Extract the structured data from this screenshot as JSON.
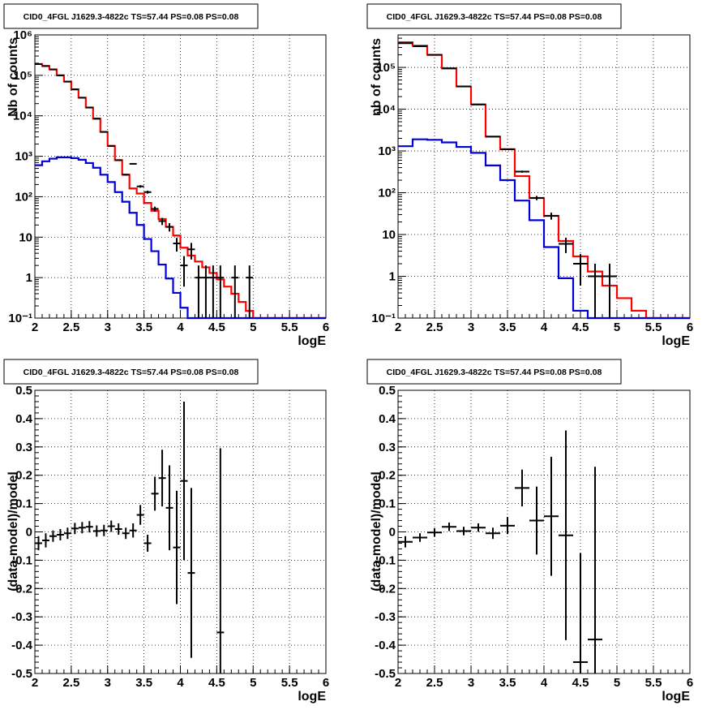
{
  "colors": {
    "data": "#000000",
    "model_total": "#ff0000",
    "model_source": "#0000d6"
  },
  "chart_data": [
    {
      "id": "p1",
      "type": "line",
      "title": "CID0_4FGL J1629.3-4822c TS=57.44 PS=0.08 PS=0.08",
      "xlabel": "logE",
      "ylabel": "Nb of counts",
      "xlim": [
        2,
        6
      ],
      "ylim": [
        0.1,
        1000000
      ],
      "yscale": "log",
      "xticks": [
        "2",
        "2.5",
        "3",
        "3.5",
        "4",
        "4.5",
        "5",
        "5.5",
        "6"
      ],
      "yticks": [
        "10⁻¹",
        "1",
        "10",
        "10²",
        "10³",
        "10⁴",
        "10⁵",
        "10⁶"
      ],
      "grid": true,
      "series": [
        {
          "role": "model_total",
          "style": "step",
          "bin_width": 0.1,
          "x": [
            2.0,
            2.1,
            2.2,
            2.3,
            2.4,
            2.5,
            2.6,
            2.7,
            2.8,
            2.9,
            3.0,
            3.1,
            3.2,
            3.3,
            3.4,
            3.5,
            3.6,
            3.7,
            3.8,
            3.9,
            4.0,
            4.1,
            4.2,
            4.3,
            4.4,
            4.5,
            4.6,
            4.7,
            4.8,
            4.9,
            5.0,
            5.1,
            5.2,
            5.3,
            5.4,
            5.5,
            5.6,
            5.7,
            5.8,
            5.9
          ],
          "y": [
            190000,
            170000,
            140000,
            100000,
            70000,
            45000,
            28000,
            16000,
            8500,
            4000,
            1800,
            800,
            350,
            160,
            120,
            70,
            45,
            28,
            18,
            11,
            5.5,
            3.5,
            2.5,
            1.8,
            1.3,
            0.9,
            0.6,
            0.4,
            0.25,
            0.15,
            0.1,
            0.1,
            0.1,
            0.1,
            0.1,
            0.1,
            0.1,
            0.1,
            0.1,
            0.1
          ]
        },
        {
          "role": "model_source",
          "style": "step",
          "bin_width": 0.1,
          "x": [
            2.0,
            2.1,
            2.2,
            2.3,
            2.4,
            2.5,
            2.6,
            2.7,
            2.8,
            2.9,
            3.0,
            3.1,
            3.2,
            3.3,
            3.4,
            3.5,
            3.6,
            3.7,
            3.8,
            3.9,
            4.0,
            4.1,
            4.2,
            4.3,
            4.4,
            4.5,
            4.6,
            4.7,
            4.8,
            4.9,
            5.0,
            5.1,
            5.2,
            5.3,
            5.4,
            5.5,
            5.6,
            5.7,
            5.8,
            5.9
          ],
          "y": [
            600,
            750,
            870,
            940,
            940,
            900,
            820,
            680,
            520,
            350,
            230,
            130,
            75,
            40,
            20,
            9,
            4.5,
            2.1,
            0.95,
            0.42,
            0.18,
            0.1,
            0.1,
            0.1,
            0.1,
            0.1,
            0.1,
            0.1,
            0.1,
            0.1,
            0.1,
            0.1,
            0.1,
            0.1,
            0.1,
            0.1,
            0.1,
            0.1,
            0.1,
            0.1
          ]
        },
        {
          "role": "data",
          "style": "errorbar",
          "bin_width": 0.1,
          "x": [
            2.05,
            2.15,
            2.25,
            2.35,
            2.45,
            2.55,
            2.65,
            2.75,
            2.85,
            2.95,
            3.05,
            3.15,
            3.25,
            3.35,
            3.45,
            3.55,
            3.65,
            3.75,
            3.85,
            3.95,
            4.05,
            4.15,
            4.25,
            4.35,
            4.45,
            4.55,
            4.75,
            4.95
          ],
          "y": [
            190000,
            170000,
            140000,
            100000,
            70000,
            45000,
            28000,
            16000,
            8500,
            4000,
            1800,
            800,
            350,
            650,
            180,
            130,
            50,
            25,
            18,
            7,
            2,
            5,
            1,
            1,
            1,
            1,
            1,
            1
          ],
          "err_lo": [
            440,
            410,
            370,
            320,
            265,
            212,
            167,
            126,
            92,
            63,
            42,
            28,
            19,
            25,
            13,
            11,
            7,
            5,
            4.2,
            2.6,
            1.4,
            2.2,
            0.9,
            0.9,
            0.9,
            0.9,
            0.9,
            0.9
          ],
          "err_hi": [
            440,
            410,
            370,
            320,
            265,
            212,
            167,
            126,
            92,
            63,
            42,
            28,
            19,
            25,
            13,
            11,
            7,
            5,
            4.2,
            2.6,
            1.4,
            2.2,
            1.0,
            1.0,
            1.0,
            1.0,
            1.0,
            1.0
          ]
        }
      ]
    },
    {
      "id": "p2",
      "type": "line",
      "title": "CID0_4FGL J1629.3-4822c TS=57.44 PS=0.08 PS=0.08",
      "xlabel": "logE",
      "ylabel": "nb of counts",
      "xlim": [
        2,
        6
      ],
      "ylim": [
        0.1,
        600000
      ],
      "yscale": "log",
      "xticks": [
        "2",
        "2.5",
        "3",
        "3.5",
        "4",
        "4.5",
        "5",
        "5.5",
        "6"
      ],
      "yticks": [
        "10⁻¹",
        "1",
        "10",
        "10²",
        "10³",
        "10⁴",
        "10⁵"
      ],
      "grid": true,
      "series": [
        {
          "role": "model_total",
          "style": "step",
          "bin_width": 0.2,
          "x": [
            2.0,
            2.2,
            2.4,
            2.6,
            2.8,
            3.0,
            3.2,
            3.4,
            3.6,
            3.8,
            4.0,
            4.2,
            4.4,
            4.6,
            4.8,
            5.0,
            5.2,
            5.4,
            5.6,
            5.8
          ],
          "y": [
            400000,
            330000,
            200000,
            95000,
            35000,
            13000,
            2200,
            1100,
            250,
            75,
            28,
            7,
            3,
            1.3,
            0.6,
            0.3,
            0.15,
            0.1,
            0.1,
            0.1
          ]
        },
        {
          "role": "model_source",
          "style": "step",
          "bin_width": 0.2,
          "x": [
            2.0,
            2.2,
            2.4,
            2.6,
            2.8,
            3.0,
            3.2,
            3.4,
            3.6,
            3.8,
            4.0,
            4.2,
            4.4,
            4.6,
            4.8,
            5.0,
            5.2,
            5.4,
            5.6,
            5.8
          ],
          "y": [
            1300,
            1900,
            1850,
            1600,
            1250,
            900,
            450,
            200,
            65,
            22,
            5,
            0.9,
            0.15,
            0.1,
            0.1,
            0.1,
            0.1,
            0.1,
            0.1,
            0.1
          ]
        },
        {
          "role": "data",
          "style": "errorbar",
          "bin_width": 0.2,
          "x": [
            2.1,
            2.3,
            2.5,
            2.7,
            2.9,
            3.1,
            3.3,
            3.5,
            3.7,
            3.9,
            4.1,
            4.3,
            4.5,
            4.7,
            4.9
          ],
          "y": [
            380000,
            320000,
            200000,
            95000,
            35000,
            13000,
            2200,
            1100,
            320,
            75,
            28,
            6,
            2,
            1,
            1
          ],
          "err_lo": [
            620,
            570,
            450,
            310,
            190,
            115,
            47,
            33,
            18,
            8.7,
            5.3,
            2.4,
            1.4,
            0.9,
            0.9
          ],
          "err_hi": [
            620,
            570,
            450,
            310,
            190,
            115,
            47,
            33,
            18,
            8.7,
            5.3,
            2.4,
            1.4,
            1.0,
            1.0
          ]
        }
      ]
    },
    {
      "id": "p3",
      "type": "scatter",
      "title": "CID0_4FGL J1629.3-4822c TS=57.44 PS=0.08 PS=0.08",
      "xlabel": "logE",
      "ylabel": "(data-model)/model",
      "xlim": [
        2,
        6
      ],
      "ylim": [
        -0.5,
        0.5
      ],
      "yscale": "linear",
      "xticks": [
        "2",
        "2.5",
        "3",
        "3.5",
        "4",
        "4.5",
        "5",
        "5.5",
        "6"
      ],
      "yticks": [
        "-0.5",
        "-0.4",
        "-0.3",
        "-0.2",
        "-0.1",
        "0",
        "0.1",
        "0.2",
        "0.3",
        "0.4",
        "0.5"
      ],
      "grid": true,
      "series": [
        {
          "role": "data",
          "style": "errorbar",
          "bin_width": 0.1,
          "x": [
            2.05,
            2.15,
            2.25,
            2.35,
            2.45,
            2.55,
            2.65,
            2.75,
            2.85,
            2.95,
            3.05,
            3.15,
            3.25,
            3.35,
            3.45,
            3.55,
            3.65,
            3.75,
            3.85,
            3.95,
            4.05,
            4.15,
            4.55
          ],
          "y": [
            -0.04,
            -0.03,
            -0.015,
            -0.01,
            -0.005,
            0.012,
            0.015,
            0.018,
            0.003,
            0.005,
            0.02,
            0.01,
            -0.005,
            0.005,
            0.06,
            -0.04,
            0.135,
            0.19,
            0.085,
            -0.055,
            0.18,
            -0.145,
            -0.355
          ],
          "err": [
            0.025,
            0.025,
            0.02,
            0.02,
            0.02,
            0.02,
            0.02,
            0.02,
            0.02,
            0.02,
            0.02,
            0.02,
            0.02,
            0.025,
            0.035,
            0.03,
            0.06,
            0.1,
            0.15,
            0.2,
            0.28,
            0.3,
            0.65
          ]
        }
      ]
    },
    {
      "id": "p4",
      "type": "scatter",
      "title": "CID0_4FGL J1629.3-4822c TS=57.44 PS=0.08 PS=0.08",
      "xlabel": "logE",
      "ylabel": "(data-model)/model",
      "xlim": [
        2,
        6
      ],
      "ylim": [
        -0.5,
        0.5
      ],
      "yscale": "linear",
      "xticks": [
        "2",
        "2.5",
        "3",
        "3.5",
        "4",
        "4.5",
        "5",
        "5.5",
        "6"
      ],
      "yticks": [
        "-0.5",
        "-0.4",
        "-0.3",
        "-0.2",
        "-0.1",
        "0",
        "0.1",
        "0.2",
        "0.3",
        "0.4",
        "0.5"
      ],
      "grid": true,
      "series": [
        {
          "role": "data",
          "style": "errorbar",
          "bin_width": 0.2,
          "x": [
            2.1,
            2.3,
            2.5,
            2.7,
            2.9,
            3.1,
            3.3,
            3.5,
            3.7,
            3.9,
            4.1,
            4.3,
            4.5,
            4.7
          ],
          "y": [
            -0.035,
            -0.02,
            -0.002,
            0.018,
            0.003,
            0.015,
            -0.005,
            0.022,
            0.155,
            0.04,
            0.055,
            -0.012,
            -0.46,
            -0.38
          ],
          "err": [
            0.02,
            0.015,
            0.015,
            0.015,
            0.015,
            0.015,
            0.02,
            0.03,
            0.065,
            0.12,
            0.21,
            0.37,
            0.385,
            0.61
          ]
        }
      ]
    }
  ]
}
